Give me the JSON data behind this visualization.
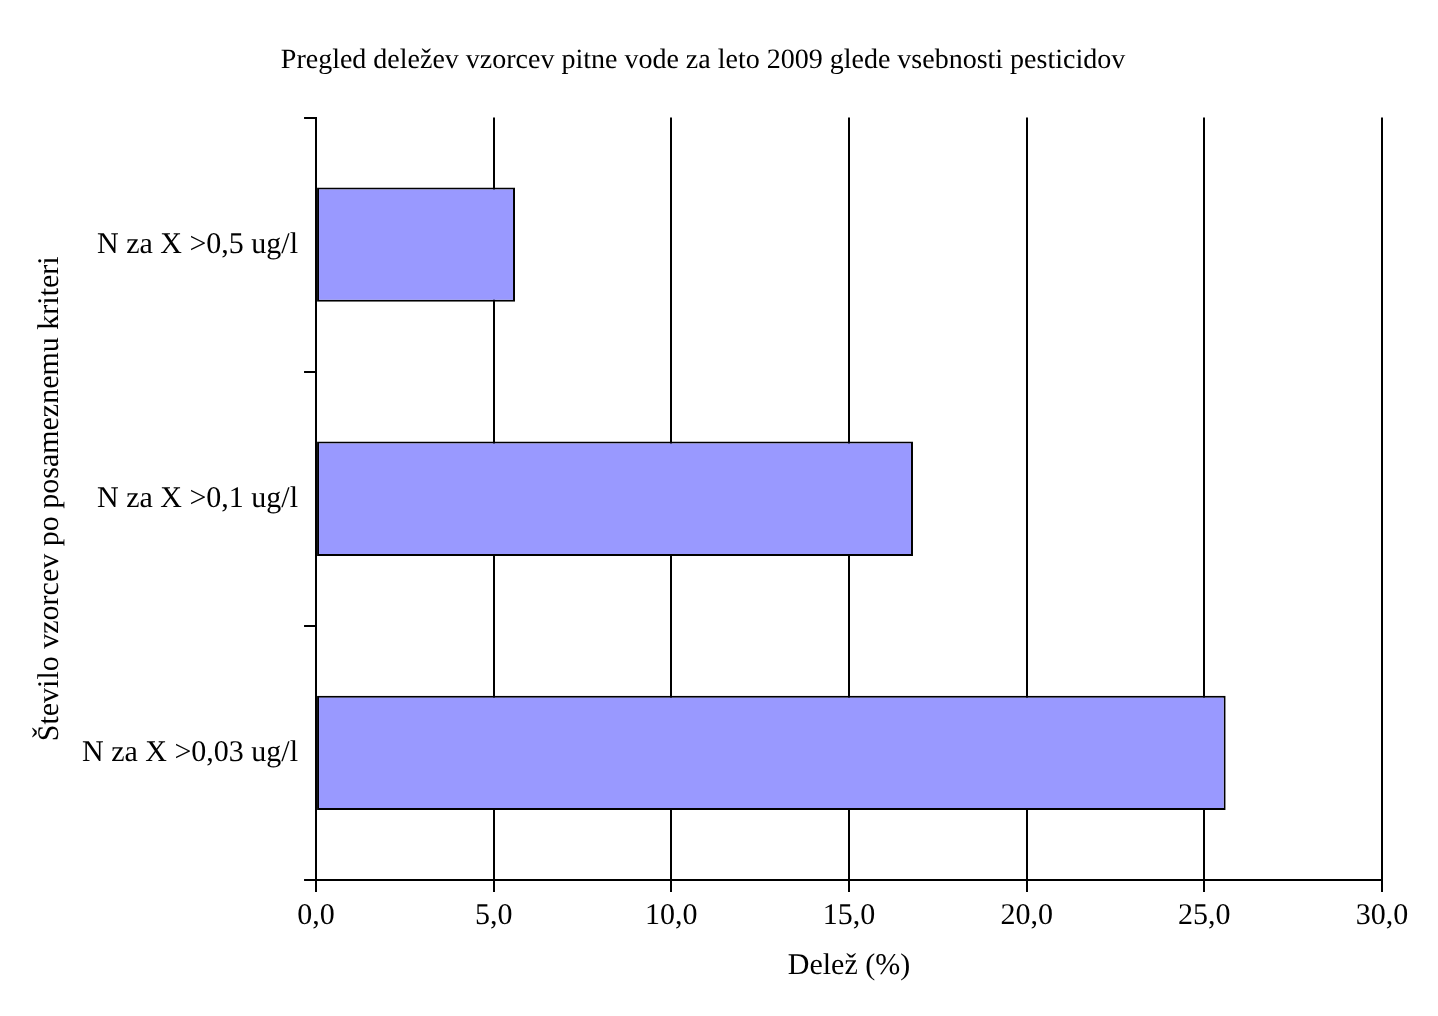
{
  "chart_data": {
    "type": "bar",
    "orientation": "horizontal",
    "title": "Pregled deležev vzorcev pitne vode za leto 2009 glede vsebnosti pesticidov",
    "xlabel": "Delež (%)",
    "ylabel": "Število vzorcev po posameznemu kriteri",
    "categories": [
      "N za X >0,5 ug/l",
      "N za X >0,1 ug/l",
      "N za X >0,03 ug/l"
    ],
    "values": [
      5.6,
      16.8,
      25.6
    ],
    "color": "#9999ff",
    "xlim": [
      0,
      30
    ],
    "xticks": [
      {
        "value": 0,
        "label": "0,0"
      },
      {
        "value": 5,
        "label": "5,0"
      },
      {
        "value": 10,
        "label": "10,0"
      },
      {
        "value": 15,
        "label": "15,0"
      },
      {
        "value": 20,
        "label": "20,0"
      },
      {
        "value": 25,
        "label": "25,0"
      },
      {
        "value": 30,
        "label": "30,0"
      }
    ],
    "grid": "x",
    "legend": false
  }
}
